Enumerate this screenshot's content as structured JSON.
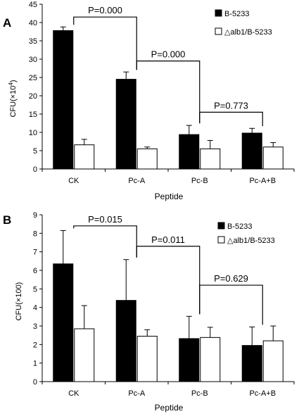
{
  "chart_data": [
    {
      "panel_label": "A",
      "type": "bar",
      "xlabel": "Peptide",
      "ylabel_main": "CFU(×10",
      "ylabel_sup": "4",
      "ylabel_close": ")",
      "ylim": [
        0,
        45
      ],
      "yticks": [
        0,
        5,
        10,
        15,
        20,
        25,
        30,
        35,
        40,
        45
      ],
      "categories": [
        "CK",
        "Pc-A",
        "Pc-B",
        "Pc-A+B"
      ],
      "series": [
        {
          "name": "B-5233",
          "color": "#000000",
          "values": [
            37.8,
            24.5,
            9.4,
            9.8
          ],
          "errors": [
            1.0,
            2.0,
            2.5,
            1.3
          ]
        },
        {
          "name": "△alb1/B-5233",
          "color": "#ffffff",
          "values": [
            6.6,
            5.5,
            5.5,
            6.0
          ],
          "errors": [
            1.5,
            0.5,
            2.3,
            1.2
          ]
        }
      ],
      "annotations": [
        {
          "text": "P=0.000",
          "from": 0,
          "to": 1,
          "level": 41.5
        },
        {
          "text": "P=0.000",
          "from": 1,
          "to": 2,
          "level": 29.5
        },
        {
          "text": "P=0.773",
          "from": 2,
          "to": 3,
          "level": 15.5
        }
      ],
      "legend_position": "top-right"
    },
    {
      "panel_label": "B",
      "type": "bar",
      "xlabel": "Peptide",
      "ylabel_main": "CFU(×100)",
      "ylabel_sup": "",
      "ylabel_close": "",
      "ylim": [
        0,
        9
      ],
      "yticks": [
        0,
        1,
        2,
        3,
        4,
        5,
        6,
        7,
        8,
        9
      ],
      "categories": [
        "CK",
        "Pc-A",
        "Pc-B",
        "Pc-A+B"
      ],
      "series": [
        {
          "name": "B-5233",
          "color": "#000000",
          "values": [
            6.35,
            4.38,
            2.32,
            1.95
          ],
          "errors": [
            1.8,
            2.2,
            1.2,
            1.0
          ]
        },
        {
          "name": "△alb1/B-5233",
          "color": "#ffffff",
          "values": [
            2.85,
            2.45,
            2.38,
            2.2
          ],
          "errors": [
            1.25,
            0.35,
            0.55,
            0.8
          ]
        }
      ],
      "annotations": [
        {
          "text": "P=0.015",
          "from": 0,
          "to": 1,
          "level": 8.4
        },
        {
          "text": "P=0.011",
          "from": 1,
          "to": 2,
          "level": 7.3
        },
        {
          "text": "P=0.629",
          "from": 2,
          "to": 3,
          "level": 5.2
        }
      ],
      "legend_position": "top-right"
    }
  ]
}
